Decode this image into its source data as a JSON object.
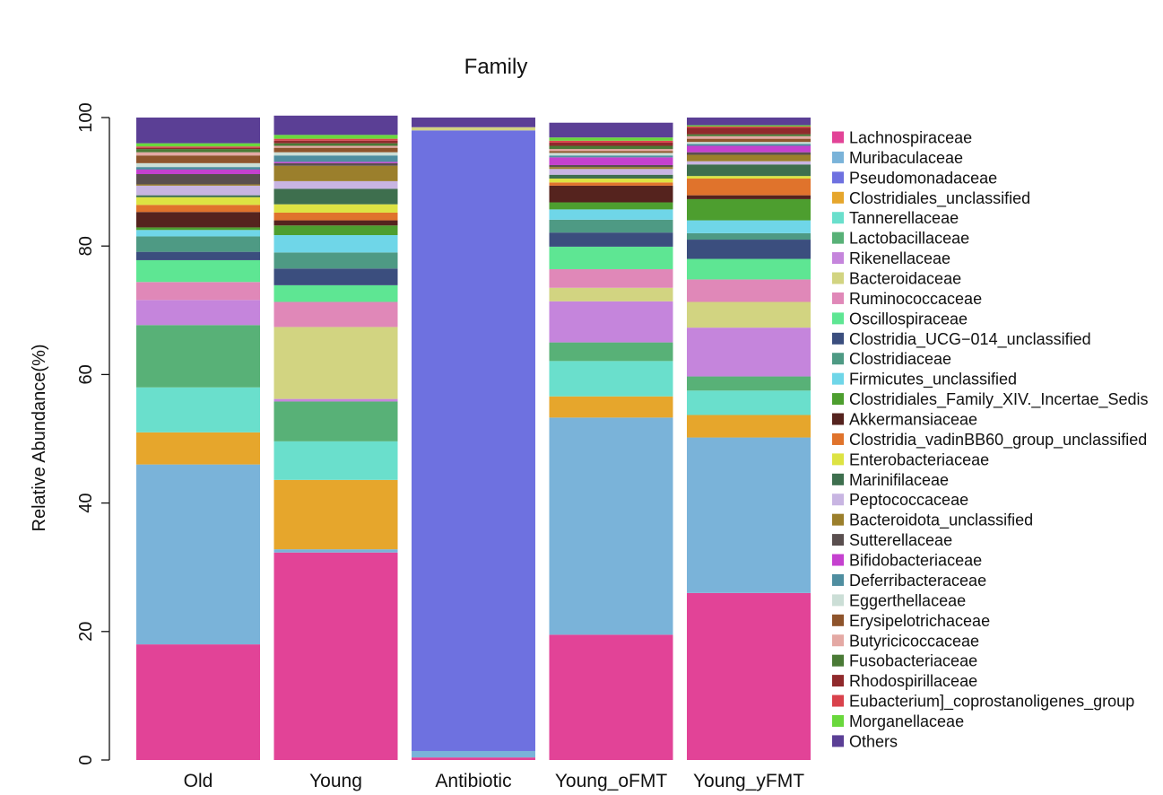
{
  "chart_data": {
    "type": "stacked-bar",
    "title": "Family",
    "xlabel": "",
    "ylabel": "Relative Abundance(%)",
    "ylim": [
      0,
      100
    ],
    "yticks": [
      0,
      20,
      40,
      60,
      80,
      100
    ],
    "legend_position": "right",
    "categories": [
      "Old",
      "Young",
      "Antibiotic",
      "Young_oFMT",
      "Young_yFMT"
    ],
    "series": [
      {
        "name": "Lachnospiraceae",
        "color": "#e24397",
        "values": [
          18.0,
          32.3,
          0.4,
          19.5,
          26.0
        ]
      },
      {
        "name": "Muribaculaceae",
        "color": "#7ab3d9",
        "values": [
          28.0,
          0.5,
          1.0,
          33.8,
          24.2
        ]
      },
      {
        "name": "Pseudomonadaceae",
        "color": "#6e71e0",
        "values": [
          0.0,
          0.0,
          96.6,
          0.0,
          0.0
        ]
      },
      {
        "name": "Clostridiales_unclassified",
        "color": "#e6a62c",
        "values": [
          5.0,
          10.8,
          0.0,
          3.3,
          3.5
        ]
      },
      {
        "name": "Tannerellaceae",
        "color": "#6adfcc",
        "values": [
          7.0,
          6.0,
          0.0,
          5.5,
          3.8
        ]
      },
      {
        "name": "Lactobacillaceae",
        "color": "#58b177",
        "values": [
          9.7,
          6.2,
          0.0,
          2.9,
          2.2
        ]
      },
      {
        "name": "Rikenellaceae",
        "color": "#c585dc",
        "values": [
          3.9,
          0.4,
          0.0,
          6.4,
          7.6
        ]
      },
      {
        "name": "Bacteroidaceae",
        "color": "#d2d481",
        "values": [
          0.0,
          11.2,
          0.5,
          2.1,
          4.0
        ]
      },
      {
        "name": "Ruminococcaceae",
        "color": "#e088b8",
        "values": [
          2.8,
          3.9,
          0.0,
          2.9,
          3.5
        ]
      },
      {
        "name": "Oscillospiraceae",
        "color": "#5ee693",
        "values": [
          3.4,
          2.6,
          0.0,
          3.5,
          3.2
        ]
      },
      {
        "name": "Clostridia_UCG−014_unclassified",
        "color": "#3b4e7e",
        "values": [
          1.3,
          2.6,
          0.0,
          2.2,
          3.0
        ]
      },
      {
        "name": "Clostridiaceae",
        "color": "#4e9a84",
        "values": [
          2.4,
          2.5,
          0.0,
          2.0,
          1.0
        ]
      },
      {
        "name": "Firmicutes_unclassified",
        "color": "#6fd6e8",
        "values": [
          1.0,
          2.7,
          0.0,
          1.6,
          2.0
        ]
      },
      {
        "name": "Clostridiales_Family_XIV._Incertae_Sedis",
        "color": "#4d9e2f",
        "values": [
          0.4,
          1.5,
          0.0,
          1.1,
          3.3
        ]
      },
      {
        "name": "Akkermansiaceae",
        "color": "#55231e",
        "values": [
          2.4,
          0.8,
          0.0,
          2.6,
          0.6
        ]
      },
      {
        "name": "Clostridia_vadinBB60_group_unclassified",
        "color": "#e0732c",
        "values": [
          1.1,
          1.2,
          0.0,
          0.5,
          2.6
        ]
      },
      {
        "name": "Enterobacteriaceae",
        "color": "#dde343",
        "values": [
          1.2,
          1.3,
          0.0,
          0.6,
          0.4
        ]
      },
      {
        "name": "Marinifilaceae",
        "color": "#3e6f4e",
        "values": [
          0.3,
          2.4,
          0.0,
          0.6,
          1.8
        ]
      },
      {
        "name": "Peptococcaceae",
        "color": "#c8b5e2",
        "values": [
          1.5,
          1.2,
          0.0,
          0.9,
          0.5
        ]
      },
      {
        "name": "Bacteroidota_unclassified",
        "color": "#9b7f2c",
        "values": [
          0.2,
          2.4,
          0.0,
          0.3,
          1.0
        ]
      },
      {
        "name": "Sutterellaceae",
        "color": "#5a4f4f",
        "values": [
          1.6,
          0.4,
          0.0,
          0.3,
          0.4
        ]
      },
      {
        "name": "Bifidobacteriaceae",
        "color": "#c541cf",
        "values": [
          0.7,
          0.2,
          0.0,
          1.2,
          1.0
        ]
      },
      {
        "name": "Deferribacteraceae",
        "color": "#4f8ea0",
        "values": [
          0.4,
          1.0,
          0.0,
          0.3,
          0.3
        ]
      },
      {
        "name": "Eggerthellaceae",
        "color": "#cbded6",
        "values": [
          0.6,
          0.5,
          0.0,
          0.4,
          0.3
        ]
      },
      {
        "name": "Erysipelotrichaceae",
        "color": "#8e542c",
        "values": [
          1.2,
          0.7,
          0.0,
          0.3,
          0.5
        ]
      },
      {
        "name": "Butyricicoccaceae",
        "color": "#e4a9a4",
        "values": [
          0.5,
          0.3,
          0.0,
          0.3,
          0.4
        ]
      },
      {
        "name": "Fusobacteriaceae",
        "color": "#4a7a36",
        "values": [
          0.5,
          0.4,
          0.0,
          0.5,
          0.3
        ]
      },
      {
        "name": "Rhodospirillaceae",
        "color": "#902a2c",
        "values": [
          0.2,
          0.4,
          0.0,
          0.5,
          1.0
        ]
      },
      {
        "name": "Eubacterium]_coprostanoligenes_group",
        "color": "#d9424c",
        "values": [
          0.2,
          0.3,
          0.0,
          0.3,
          0.2
        ]
      },
      {
        "name": "Morganellaceae",
        "color": "#69d83c",
        "values": [
          0.5,
          0.6,
          0.0,
          0.5,
          0.2
        ]
      },
      {
        "name": "Others",
        "color": "#5b3f95",
        "values": [
          4.0,
          3.0,
          1.5,
          2.3,
          1.2
        ]
      }
    ]
  }
}
